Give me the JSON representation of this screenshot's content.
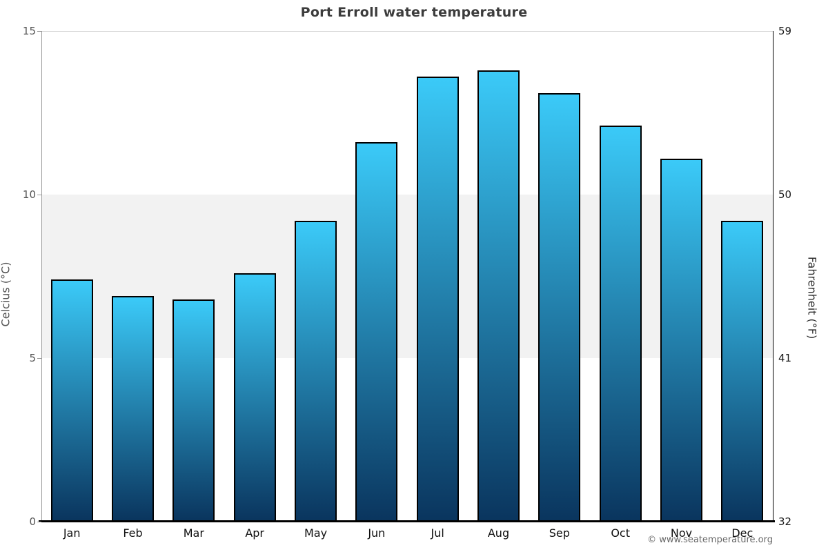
{
  "chart_data": {
    "type": "bar",
    "title": "Port Erroll water temperature",
    "categories": [
      "Jan",
      "Feb",
      "Mar",
      "Apr",
      "May",
      "Jun",
      "Jul",
      "Aug",
      "Sep",
      "Oct",
      "Nov",
      "Dec"
    ],
    "values": [
      7.4,
      6.9,
      6.8,
      7.6,
      9.2,
      11.6,
      13.6,
      13.8,
      13.1,
      12.1,
      11.1,
      9.2
    ],
    "ylabel_left": "Celcius (°C)",
    "ylabel_right": "Fahrenheit (°F)",
    "yticks_left": [
      0,
      5,
      10,
      15
    ],
    "yticks_right": [
      32,
      41,
      50,
      59
    ],
    "ylim": [
      0,
      15
    ],
    "band_celsius": [
      5,
      10
    ],
    "grid": "top-line-only",
    "legend": "none",
    "colors": {
      "bar_gradient_top": "#3bcaf8",
      "bar_gradient_bottom": "#0a355e",
      "bar_border": "#000000",
      "band_fill": "#f2f2f2",
      "title_text": "#3c3c3c",
      "left_axis_text": "#545454",
      "right_axis_text": "#1a1a1a"
    },
    "copyright": "© www.seatemperature.org"
  }
}
